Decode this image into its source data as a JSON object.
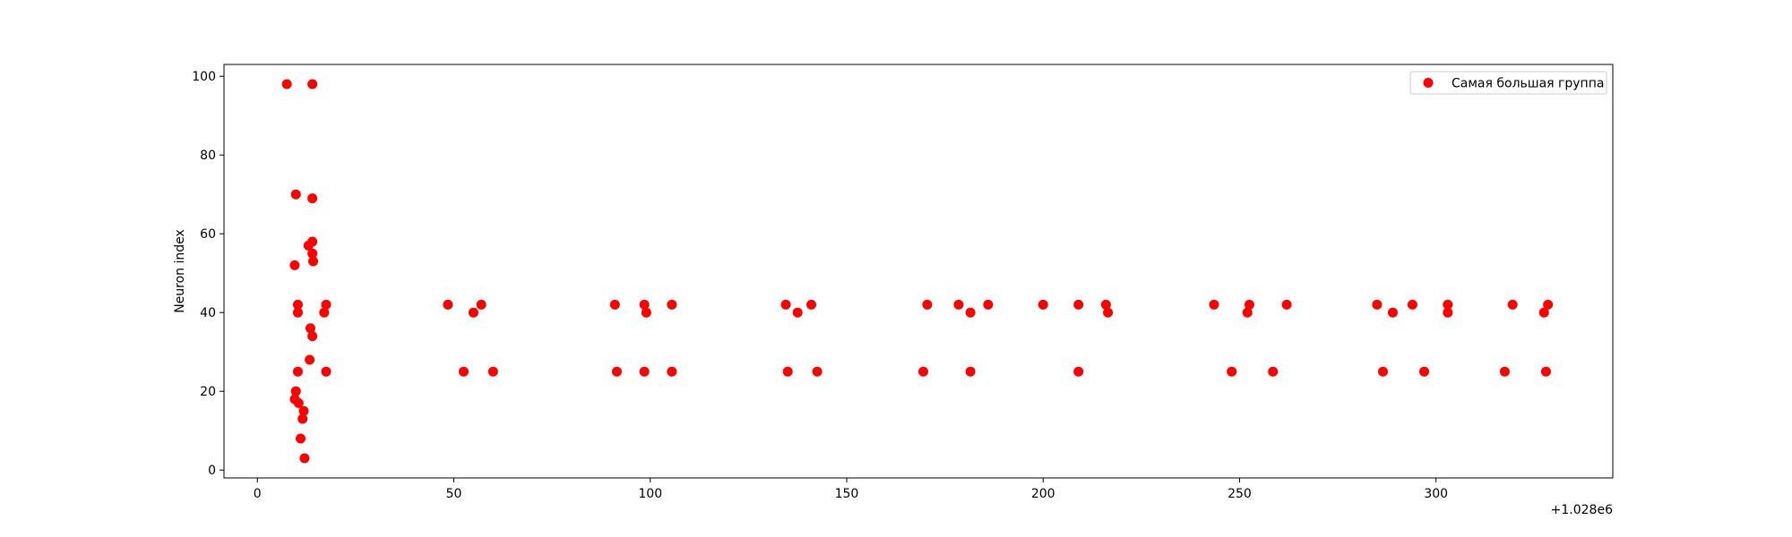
{
  "chart_data": {
    "type": "scatter",
    "title": "",
    "xlabel": "",
    "ylabel": "Neuron index",
    "x_offset_label": "+1.028e6",
    "xlim": [
      -8.5,
      345
    ],
    "ylim": [
      -2,
      103
    ],
    "xticks": [
      0,
      50,
      100,
      150,
      200,
      250,
      300
    ],
    "yticks": [
      0,
      20,
      40,
      60,
      80,
      100
    ],
    "grid": false,
    "legend_position": "top-right",
    "series": [
      {
        "name": "Самая большая группа",
        "color": "#ff0000",
        "points": [
          [
            7.5,
            98
          ],
          [
            14,
            98
          ],
          [
            9.8,
            70
          ],
          [
            14,
            69
          ],
          [
            13,
            57
          ],
          [
            14,
            58
          ],
          [
            14,
            55
          ],
          [
            14.2,
            53
          ],
          [
            9.5,
            52
          ],
          [
            10.3,
            42
          ],
          [
            10.3,
            40
          ],
          [
            17.5,
            42
          ],
          [
            17,
            40
          ],
          [
            13.5,
            36
          ],
          [
            14,
            34
          ],
          [
            13.3,
            28
          ],
          [
            10.3,
            25
          ],
          [
            17.5,
            25
          ],
          [
            9.8,
            20
          ],
          [
            9.5,
            18
          ],
          [
            10.5,
            17
          ],
          [
            11.8,
            15
          ],
          [
            11.5,
            13
          ],
          [
            11,
            8
          ],
          [
            12,
            3
          ],
          [
            48.5,
            42
          ],
          [
            55,
            40
          ],
          [
            57,
            42
          ],
          [
            52.5,
            25
          ],
          [
            60,
            25
          ],
          [
            91,
            42
          ],
          [
            98.5,
            42
          ],
          [
            99,
            40
          ],
          [
            105.5,
            42
          ],
          [
            91.5,
            25
          ],
          [
            98.5,
            25
          ],
          [
            105.5,
            25
          ],
          [
            134.5,
            42
          ],
          [
            137.5,
            40
          ],
          [
            141,
            42
          ],
          [
            135,
            25
          ],
          [
            142.5,
            25
          ],
          [
            170.5,
            42
          ],
          [
            178.5,
            42
          ],
          [
            181.5,
            40
          ],
          [
            186,
            42
          ],
          [
            169.5,
            25
          ],
          [
            181.5,
            25
          ],
          [
            200,
            42
          ],
          [
            209,
            42
          ],
          [
            216,
            42
          ],
          [
            216.5,
            40
          ],
          [
            209,
            25
          ],
          [
            243.5,
            42
          ],
          [
            252,
            40
          ],
          [
            252.5,
            42
          ],
          [
            262,
            42
          ],
          [
            248,
            25
          ],
          [
            258.5,
            25
          ],
          [
            285,
            42
          ],
          [
            289,
            40
          ],
          [
            294,
            42
          ],
          [
            303,
            42
          ],
          [
            303,
            40
          ],
          [
            286.5,
            25
          ],
          [
            297,
            25
          ],
          [
            319.5,
            42
          ],
          [
            327.5,
            40
          ],
          [
            328.5,
            42
          ],
          [
            317.5,
            25
          ],
          [
            328,
            25
          ]
        ]
      }
    ]
  }
}
